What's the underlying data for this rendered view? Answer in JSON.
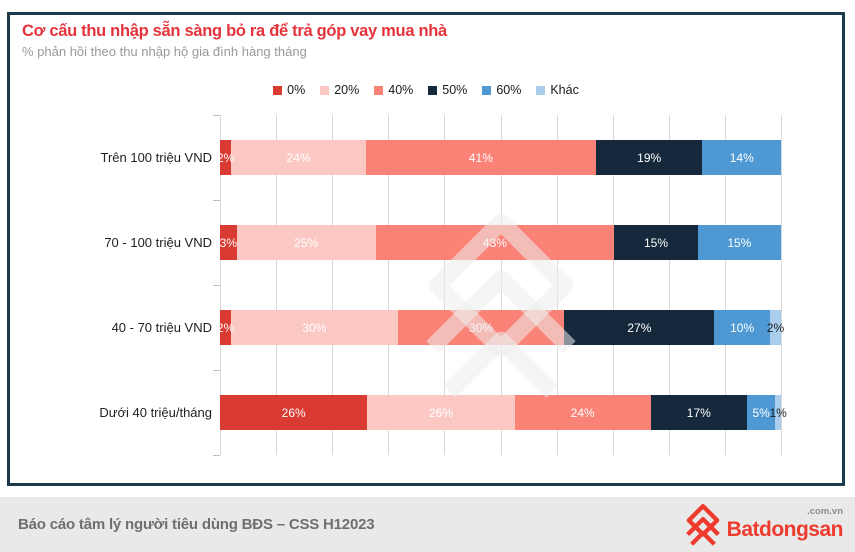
{
  "title": "Cơ cấu thu nhập sẵn sàng bỏ ra để trả góp vay mua nhà",
  "subtitle": "% phản hồi theo thu nhập hộ gia đình hàng tháng",
  "colors": {
    "title_red": "#e4333a",
    "box_border": "#1d3849",
    "gridline": "#d9d9d9",
    "footer_bg": "#e9e9e9",
    "brand_red": "#ee3b2e",
    "watermark": "#ececec"
  },
  "legend": [
    {
      "label": "0%",
      "color": "#d93a32"
    },
    {
      "label": "20%",
      "color": "#fbc8c4"
    },
    {
      "label": "40%",
      "color": "#fb8277"
    },
    {
      "label": "50%",
      "color": "#16293c"
    },
    {
      "label": "60%",
      "color": "#4e99d3"
    },
    {
      "label": "Khác",
      "color": "#a9cdea"
    }
  ],
  "chart_data": {
    "type": "bar",
    "variant": "horizontal-100pct-stacked",
    "title": "Cơ cấu thu nhập sẵn sàng bỏ ra để trả góp vay mua nhà",
    "subtitle": "% phản hồi theo thu nhập hộ gia đình hàng tháng",
    "categories": [
      "Trên 100 triệu VND",
      "70 - 100 triệu VND",
      "40 - 70 triệu VND",
      "Dưới 40 triệu/tháng"
    ],
    "series": [
      {
        "name": "0%",
        "color": "#d93a32",
        "label_color": "#ffffff",
        "values": [
          2,
          3,
          2,
          26
        ]
      },
      {
        "name": "20%",
        "color": "#fbc8c4",
        "label_color": "#ffffff",
        "values": [
          24,
          25,
          30,
          26
        ]
      },
      {
        "name": "40%",
        "color": "#fb8277",
        "label_color": "#ffffff",
        "values": [
          41,
          43,
          30,
          24
        ]
      },
      {
        "name": "50%",
        "color": "#16293c",
        "label_color": "#ffffff",
        "values": [
          19,
          15,
          27,
          17
        ]
      },
      {
        "name": "60%",
        "color": "#4e99d3",
        "label_color": "#ffffff",
        "values": [
          14,
          15,
          10,
          5
        ]
      },
      {
        "name": "Khác",
        "color": "#a9cdea",
        "label_color": "#1f1f1f",
        "values": [
          0,
          0,
          2,
          1
        ]
      }
    ],
    "value_suffix": "%",
    "xlim": [
      0,
      100
    ],
    "gridline_step_pct": 10,
    "grid": true,
    "legend_position": "top"
  },
  "footer": {
    "source": "Báo cáo tâm lý người tiêu dùng BĐS – CSS H12023",
    "brand": "Batdongsan",
    "brand_suffix": ".com.vn"
  }
}
